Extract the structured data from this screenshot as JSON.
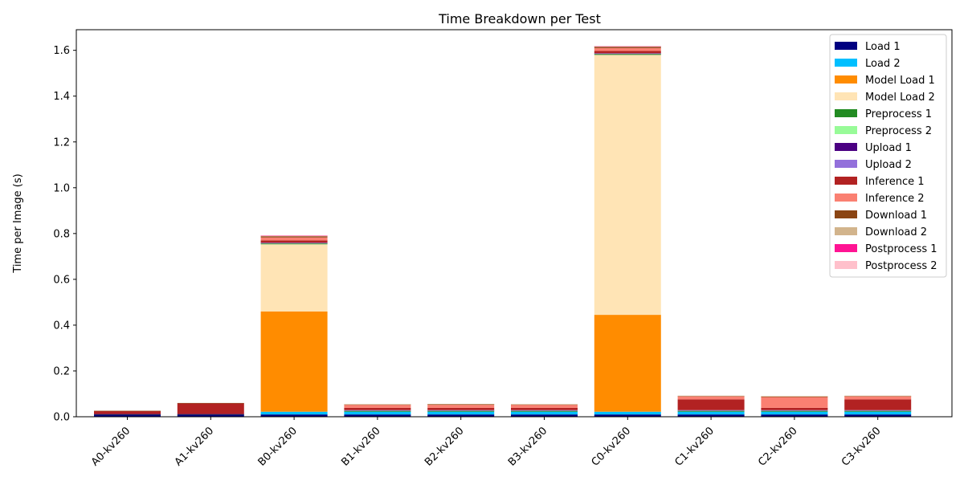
{
  "chart_data": {
    "type": "bar",
    "stacked": true,
    "title": "Time Breakdown per Test",
    "xlabel": "",
    "ylabel": "Time per Image (s)",
    "ylim": [
      0,
      1.69
    ],
    "yticks": [
      "0.0",
      "0.2",
      "0.4",
      "0.6",
      "0.8",
      "1.0",
      "1.2",
      "1.4",
      "1.6"
    ],
    "ytick_values": [
      0,
      0.2,
      0.4,
      0.6,
      0.8,
      1.0,
      1.2,
      1.4,
      1.6
    ],
    "grid": false,
    "legend_position": "top-right",
    "categories": [
      "A0-kv260",
      "A1-kv260",
      "B0-kv260",
      "B1-kv260",
      "B2-kv260",
      "B3-kv260",
      "C0-kv260",
      "C1-kv260",
      "C2-kv260",
      "C3-kv260"
    ],
    "series": [
      {
        "name": "Load 1",
        "color": "#000080",
        "values": [
          0.01,
          0.01,
          0.01,
          0.01,
          0.01,
          0.01,
          0.01,
          0.01,
          0.01,
          0.01
        ]
      },
      {
        "name": "Load 2",
        "color": "#00bfff",
        "values": [
          0.0,
          0.0,
          0.012,
          0.012,
          0.012,
          0.012,
          0.012,
          0.012,
          0.012,
          0.012
        ]
      },
      {
        "name": "Model Load 1",
        "color": "#ff8c00",
        "values": [
          0.0,
          0.0,
          0.438,
          0.0,
          0.0,
          0.0,
          0.423,
          0.0,
          0.0,
          0.0
        ]
      },
      {
        "name": "Model Load 2",
        "color": "#ffe4b5",
        "values": [
          0.0,
          0.0,
          0.293,
          0.0,
          0.0,
          0.0,
          1.135,
          0.0,
          0.0,
          0.0
        ]
      },
      {
        "name": "Preprocess 1",
        "color": "#228b22",
        "values": [
          0.001,
          0.001,
          0.003,
          0.003,
          0.003,
          0.003,
          0.003,
          0.003,
          0.003,
          0.003
        ]
      },
      {
        "name": "Preprocess 2",
        "color": "#98fb98",
        "values": [
          0.0,
          0.0,
          0.002,
          0.002,
          0.002,
          0.002,
          0.002,
          0.002,
          0.002,
          0.002
        ]
      },
      {
        "name": "Upload 1",
        "color": "#4b0082",
        "values": [
          0.001,
          0.001,
          0.001,
          0.001,
          0.001,
          0.001,
          0.001,
          0.001,
          0.001,
          0.001
        ]
      },
      {
        "name": "Upload 2",
        "color": "#9370db",
        "values": [
          0.0,
          0.0,
          0.001,
          0.001,
          0.001,
          0.001,
          0.001,
          0.001,
          0.001,
          0.001
        ]
      },
      {
        "name": "Inference 1",
        "color": "#b22222",
        "values": [
          0.013,
          0.047,
          0.01,
          0.01,
          0.01,
          0.01,
          0.01,
          0.047,
          0.01,
          0.047
        ]
      },
      {
        "name": "Inference 2",
        "color": "#fa8072",
        "values": [
          0.0,
          0.0,
          0.013,
          0.013,
          0.013,
          0.013,
          0.013,
          0.013,
          0.047,
          0.013
        ]
      },
      {
        "name": "Download 1",
        "color": "#8b4513",
        "values": [
          0.001,
          0.001,
          0.005,
          0.002,
          0.003,
          0.002,
          0.005,
          0.002,
          0.003,
          0.002
        ]
      },
      {
        "name": "Download 2",
        "color": "#d2b48c",
        "values": [
          0.0,
          0.0,
          0.002,
          0.001,
          0.001,
          0.001,
          0.002,
          0.001,
          0.001,
          0.001
        ]
      },
      {
        "name": "Postprocess 1",
        "color": "#ff1493",
        "values": [
          0.0,
          0.0,
          0.001,
          0.0,
          0.0,
          0.0,
          0.001,
          0.0,
          0.0,
          0.0
        ]
      },
      {
        "name": "Postprocess 2",
        "color": "#ffc0cb",
        "values": [
          0.0,
          0.0,
          0.001,
          0.0,
          0.0,
          0.0,
          0.001,
          0.0,
          0.0,
          0.0
        ]
      }
    ]
  }
}
